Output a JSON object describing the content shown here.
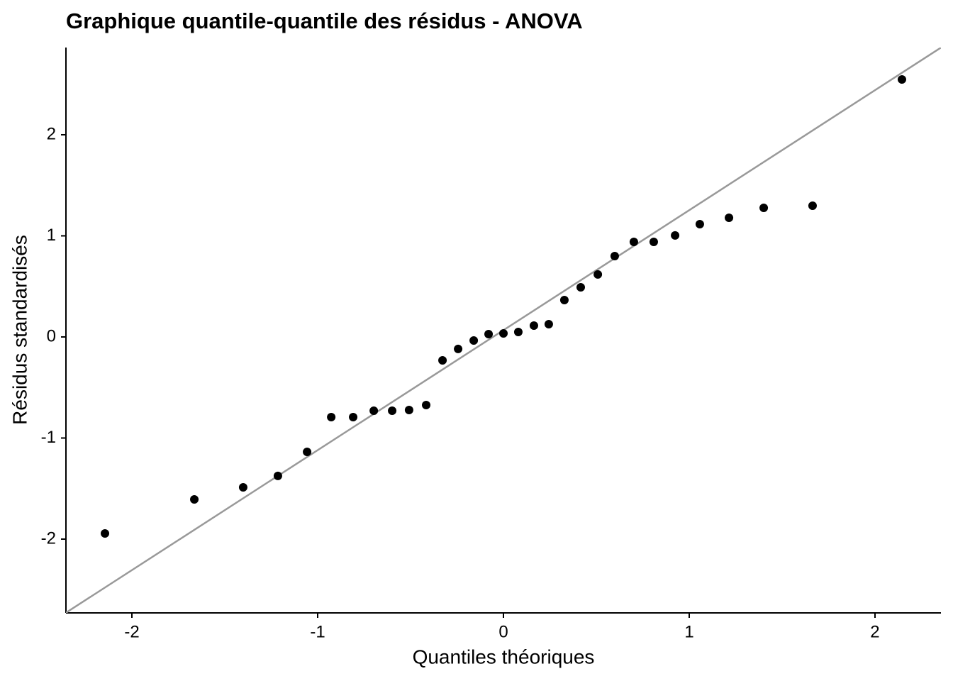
{
  "chart_data": {
    "type": "scatter",
    "title": "Graphique quantile-quantile des résidus - ANOVA",
    "x_label": "Quantiles théoriques",
    "y_label": "Résidus standardisés",
    "x": [
      -2.145,
      -1.664,
      -1.401,
      -1.214,
      -1.057,
      -0.927,
      -0.809,
      -0.698,
      -0.599,
      -0.508,
      -0.416,
      -0.328,
      -0.244,
      -0.16,
      -0.08,
      0,
      0.08,
      0.164,
      0.244,
      0.328,
      0.416,
      0.508,
      0.599,
      0.702,
      0.809,
      0.924,
      1.057,
      1.214,
      1.401,
      1.664,
      2.145
    ],
    "values": [
      -1.944,
      -1.607,
      -1.488,
      -1.375,
      -1.137,
      -0.793,
      -0.793,
      -0.73,
      -0.73,
      -0.723,
      -0.674,
      -0.232,
      -0.119,
      -0.035,
      0.028,
      0.035,
      0.049,
      0.112,
      0.126,
      0.365,
      0.491,
      0.618,
      0.8,
      0.94,
      0.94,
      1.004,
      1.116,
      1.179,
      1.277,
      1.298,
      2.547
    ],
    "color": "#000000",
    "ref_line": {
      "intercept": 0.067,
      "slope": 1.187,
      "color": "#999999"
    },
    "xlim": [
      -2.355,
      2.355
    ],
    "xticks": [
      -2,
      -1,
      0,
      1,
      2
    ],
    "ylim": [
      -2.73,
      2.863
    ],
    "yticks": [
      -2,
      -1,
      0,
      1,
      2
    ],
    "grid": false
  }
}
